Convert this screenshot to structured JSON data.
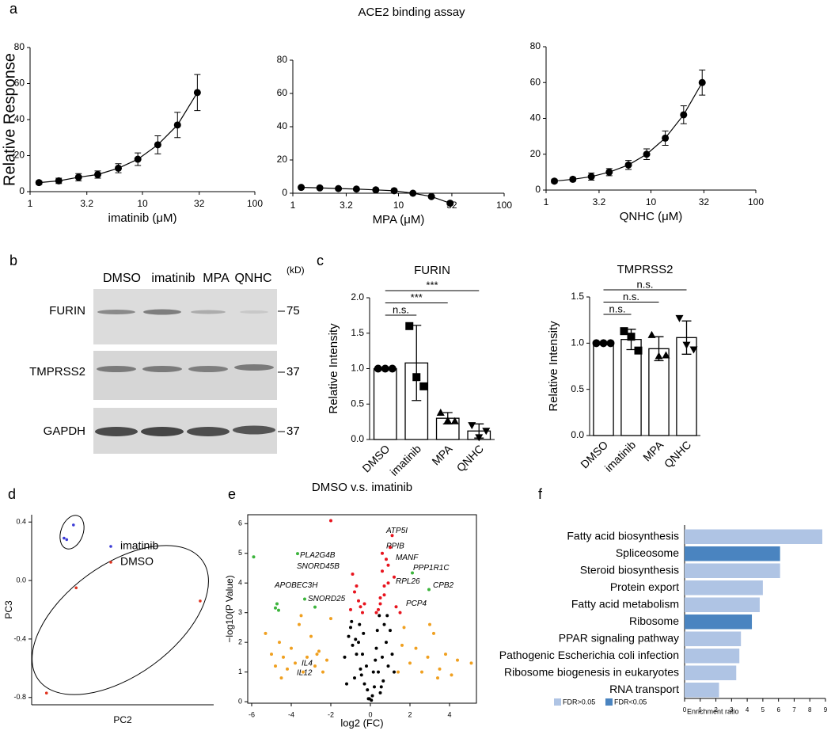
{
  "panel_labels": [
    "a",
    "b",
    "c",
    "d",
    "e",
    "f"
  ],
  "panel_a": {
    "title": "ACE2 binding assay"
  },
  "blot": {
    "lanes": [
      "DMSO",
      "imatinib",
      "MPA",
      "QNHC"
    ],
    "unit": "(kD)",
    "rows": [
      {
        "label": "FURIN",
        "marker": 75
      },
      {
        "label": "TMPRSS2",
        "marker": 37
      },
      {
        "label": "GAPDH",
        "marker": 37
      }
    ]
  },
  "chart_data": [
    {
      "type": "line",
      "y_label": "Relative Response",
      "x_label": "imatinib (μM)",
      "log_x": true,
      "color": "#000000",
      "x": [
        1.2,
        1.8,
        2.7,
        4,
        6.1,
        9.1,
        13.7,
        20.5,
        30.8
      ],
      "values": [
        5,
        6,
        8,
        9.5,
        13,
        18,
        26,
        37,
        55
      ],
      "errors": [
        1,
        1.5,
        2,
        2,
        2.5,
        3.5,
        5,
        7,
        10
      ],
      "xlim": [
        1,
        100
      ],
      "xticks": [
        1,
        3.2,
        10,
        32,
        100
      ],
      "ylim": [
        0,
        80
      ],
      "yticks": [
        0,
        20,
        40,
        60,
        80
      ]
    },
    {
      "type": "line",
      "x_label": "MPA (μM)",
      "log_x": true,
      "color": "#000000",
      "x": [
        1.2,
        1.8,
        2.7,
        4,
        6.1,
        9.1,
        13.7,
        20.5,
        30.8
      ],
      "values": [
        3.5,
        3.2,
        2.8,
        2.5,
        2,
        1.5,
        0,
        -2,
        -6
      ],
      "errors": [
        0.6,
        0.5,
        0.5,
        0.5,
        0.5,
        0.5,
        0.6,
        0.8,
        1
      ],
      "xlim": [
        1,
        100
      ],
      "xticks": [
        1,
        3.2,
        10,
        32,
        100
      ],
      "ylim": [
        0,
        80
      ],
      "yticks": [
        0,
        20,
        40,
        60,
        80
      ]
    },
    {
      "type": "line",
      "x_label": "QNHC (μM)",
      "log_x": true,
      "color": "#000000",
      "x": [
        1.2,
        1.8,
        2.7,
        4,
        6.1,
        9.1,
        13.7,
        20.5,
        30.8
      ],
      "values": [
        5,
        6,
        7.5,
        10,
        14,
        20,
        29,
        42,
        60
      ],
      "errors": [
        1,
        1,
        2,
        2,
        2.5,
        3,
        4,
        5,
        7
      ],
      "xlim": [
        1,
        100
      ],
      "xticks": [
        1,
        3.2,
        10,
        32,
        100
      ],
      "ylim": [
        0,
        80
      ],
      "yticks": [
        0,
        20,
        40,
        60,
        80
      ]
    },
    {
      "type": "bar",
      "title": "FURIN",
      "y_label": "Relative Intensity",
      "categories": [
        "DMSO",
        "imatinib",
        "MPA",
        "QNHC"
      ],
      "values": [
        1,
        1.08,
        0.3,
        0.12
      ],
      "errors": [
        0,
        0.53,
        0.08,
        0.1
      ],
      "points": [
        [
          1,
          1,
          1
        ],
        [
          1.6,
          0.88,
          0.75
        ],
        [
          0.38,
          0.27,
          0.26
        ],
        [
          0.2,
          0.03,
          0.12
        ]
      ],
      "markers": [
        "circle",
        "square",
        "triangle",
        "triangle-down"
      ],
      "color": "#ffffff",
      "ylim": [
        0,
        2
      ],
      "yticks": [
        {
          "value": 0,
          "label": "0.0"
        },
        0.5,
        {
          "value": 1,
          "label": "1.0"
        },
        1.5,
        {
          "value": 2,
          "label": "2.0"
        }
      ],
      "brackets": [
        {
          "text": "n.s.",
          "between": [
            0,
            1
          ]
        },
        {
          "text": "***",
          "between": [
            0,
            2
          ]
        },
        {
          "text": "***",
          "between": [
            0,
            3
          ]
        }
      ]
    },
    {
      "type": "bar",
      "title": "TMPRSS2",
      "y_label": "Relative Intensity",
      "categories": [
        "DMSO",
        "imatinib",
        "MPA",
        "QNHC"
      ],
      "values": [
        1,
        1.04,
        0.94,
        1.06
      ],
      "errors": [
        0,
        0.11,
        0.13,
        0.18
      ],
      "points": [
        [
          1,
          1,
          1
        ],
        [
          1.13,
          1.07,
          0.92
        ],
        [
          1.09,
          0.86,
          0.87
        ],
        [
          1.27,
          0.98,
          0.93
        ]
      ],
      "markers": [
        "circle",
        "square",
        "triangle",
        "triangle-down"
      ],
      "color": "#ffffff",
      "ylim": [
        0,
        1.5
      ],
      "yticks": [
        {
          "value": 0,
          "label": "0.0"
        },
        0.5,
        {
          "value": 1,
          "label": "1.0"
        },
        1.5
      ],
      "brackets": [
        {
          "text": "n.s.",
          "between": [
            0,
            1
          ]
        },
        {
          "text": "n.s.",
          "between": [
            0,
            2
          ]
        },
        {
          "text": "n.s.",
          "between": [
            0,
            3
          ]
        }
      ]
    },
    {
      "type": "scatter",
      "x_label": "PC2",
      "y_label": "PC3",
      "series": [
        {
          "name": "imatinib",
          "color": "#3b3bd6",
          "x": [
            -0.09,
            -0.16,
            -0.14
          ],
          "values": [
            0.38,
            0.29,
            0.28
          ]
        },
        {
          "name": "DMSO",
          "color": "#e0321e",
          "x": [
            -0.07,
            0.85,
            -0.29
          ],
          "values": [
            -0.05,
            -0.14,
            -0.77
          ]
        }
      ],
      "xlim": [
        -0.4,
        0.95
      ],
      "ylim": [
        -0.85,
        0.45
      ],
      "yticks": [
        0.4,
        {
          "value": 0,
          "label": "0.0"
        },
        -0.4,
        -0.8
      ]
    },
    {
      "type": "volcano",
      "title": "DMSO v.s. imatinib",
      "x_label": "log2 (FC)",
      "y_label": "−log10(P Value)",
      "series": [
        {
          "color": "#000000",
          "x": [
            -0.1,
            0.1,
            0.2,
            -0.3,
            0.4,
            -0.5,
            0.6,
            -0.7,
            0.8,
            -0.9,
            1.0,
            -1.1,
            0.3,
            -0.2,
            0.5,
            -0.6,
            0.15,
            -0.15,
            0.7,
            -0.8,
            0.9,
            -1.0,
            0.35,
            -0.4,
            1.2,
            -1.3,
            0.05,
            -0.05,
            0.45,
            -0.55,
            0.25,
            -0.35,
            0.65,
            -0.75,
            1.1,
            -1.2,
            0.85,
            -0.95,
            0.55,
            -0.45
          ],
          "values": [
            0.1,
            0.2,
            0.5,
            0.6,
            1.0,
            1.1,
            1.5,
            1.6,
            2.0,
            1.9,
            2.4,
            2.2,
            1.8,
            1.2,
            0.3,
            2.0,
            1.0,
            0.4,
            2.6,
            0.8,
            1.2,
            2.5,
            2.4,
            1.6,
            1.0,
            1.5,
            0.05,
            0.1,
            2.9,
            2.6,
            1.4,
            2.3,
            0.7,
            2.1,
            1.6,
            0.6,
            2.9,
            2.7,
            0.5,
            0.9
          ]
        },
        {
          "color": "#f0a020",
          "x": [
            -5.3,
            -5.0,
            -4.8,
            -4.6,
            -4.4,
            -4.2,
            -4.0,
            -3.8,
            -3.6,
            -3.4,
            -3.2,
            -3.0,
            -2.8,
            -2.6,
            -2.4,
            -2.2,
            -2.0,
            -4.5,
            -3.5,
            -2.7,
            1.4,
            1.7,
            2.0,
            2.3,
            2.6,
            2.9,
            3.2,
            3.5,
            3.8,
            4.1,
            4.4,
            3.0,
            3.4,
            1.6,
            5.1
          ],
          "values": [
            2.3,
            1.6,
            1.2,
            2.0,
            1.5,
            1.1,
            1.8,
            1.3,
            2.6,
            1.0,
            1.5,
            2.2,
            1.2,
            1.7,
            1.0,
            1.4,
            2.8,
            0.8,
            2.9,
            1.6,
            1.0,
            2.5,
            1.3,
            1.8,
            1.0,
            1.5,
            2.3,
            1.1,
            1.6,
            0.9,
            1.4,
            2.6,
            0.8,
            1.9,
            1.3
          ]
        },
        {
          "color": "#e8141e",
          "x": [
            0.3,
            0.5,
            0.7,
            0.9,
            1.1,
            0.4,
            0.6,
            0.8,
            1.0,
            1.2,
            0.5,
            0.7,
            0.9,
            1.3,
            -0.4,
            -0.6,
            -0.8,
            -1.0,
            -0.5,
            -0.7,
            -2.0,
            -0.9,
            1.5,
            0.6,
            -0.3
          ],
          "values": [
            3.0,
            3.3,
            3.6,
            4.0,
            5.6,
            3.1,
            4.4,
            4.8,
            5.2,
            4.2,
            3.5,
            3.9,
            4.6,
            3.2,
            3.0,
            3.4,
            3.7,
            3.1,
            3.2,
            3.9,
            6.1,
            4.3,
            3.0,
            5.0,
            3.3
          ]
        },
        {
          "color": "#3cb43c",
          "x": [
            -5.9,
            -3.68,
            -4.72,
            -4.64,
            -4.8,
            -3.32,
            -2.8,
            2.12,
            2.96
          ],
          "values": [
            4.88,
            4.99,
            3.3,
            3.08,
            3.16,
            3.46,
            3.19,
            4.34,
            3.78
          ]
        }
      ],
      "annotations": [
        {
          "text": "ATP5I",
          "x": 0.8,
          "y": 5.76
        },
        {
          "text": "PPIB",
          "x": 0.8,
          "y": 5.23
        },
        {
          "text": "MANF",
          "x": 1.28,
          "y": 4.85
        },
        {
          "text": "PPP1R1C",
          "x": 2.16,
          "y": 4.5
        },
        {
          "text": "RPL26",
          "x": 1.28,
          "y": 4.05
        },
        {
          "text": "CPB2",
          "x": 3.16,
          "y": 3.91
        },
        {
          "text": "PCP4",
          "x": 1.8,
          "y": 3.3
        },
        {
          "text": "PLA2G4B",
          "x": -3.56,
          "y": 4.93
        },
        {
          "text": "SNORD45B",
          "x": -3.72,
          "y": 4.56
        },
        {
          "text": "APOBEC3H",
          "x": -4.84,
          "y": 3.91
        },
        {
          "text": "SNORD25",
          "x": -3.16,
          "y": 3.46
        },
        {
          "text": "IL4",
          "x": -3.48,
          "y": 1.29
        },
        {
          "text": "IL12",
          "x": -3.72,
          "y": 0.97
        }
      ],
      "xlim": [
        -6.2,
        5.36
      ],
      "xticks": [
        -6,
        -4,
        -2,
        0,
        2,
        4
      ],
      "ylim": [
        -0.05,
        6.3
      ],
      "yticks": [
        0,
        1,
        2,
        3,
        4,
        5,
        6
      ]
    },
    {
      "type": "hbar",
      "x_label": "Enrichment ratio",
      "categories": [
        "Fatty acid biosynthesis",
        "Spliceosome",
        "Steroid biosynthesis",
        "Protein export",
        "Fatty acid metabolism",
        "Ribosome",
        "PPAR signaling pathway",
        "Pathogenic Escherichia coli infection",
        "Ribosome biogenesis in eukaryotes",
        "RNA transport"
      ],
      "values": [
        8.8,
        6.1,
        6.1,
        5.0,
        4.8,
        4.3,
        3.6,
        3.5,
        3.3,
        2.2
      ],
      "colors": [
        "#afc4e4",
        "#4a84c0",
        "#afc4e4",
        "#afc4e4",
        "#afc4e4",
        "#4a84c0",
        "#afc4e4",
        "#afc4e4",
        "#afc4e4",
        "#afc4e4"
      ],
      "legend": [
        {
          "name": "FDR>0.05",
          "color": "#afc4e4"
        },
        {
          "name": "FDR<0.05",
          "color": "#4a84c0"
        }
      ],
      "xlim": [
        0,
        9
      ],
      "xticks": [
        0,
        1,
        2,
        3,
        4,
        5,
        6,
        7,
        8,
        9
      ]
    }
  ]
}
